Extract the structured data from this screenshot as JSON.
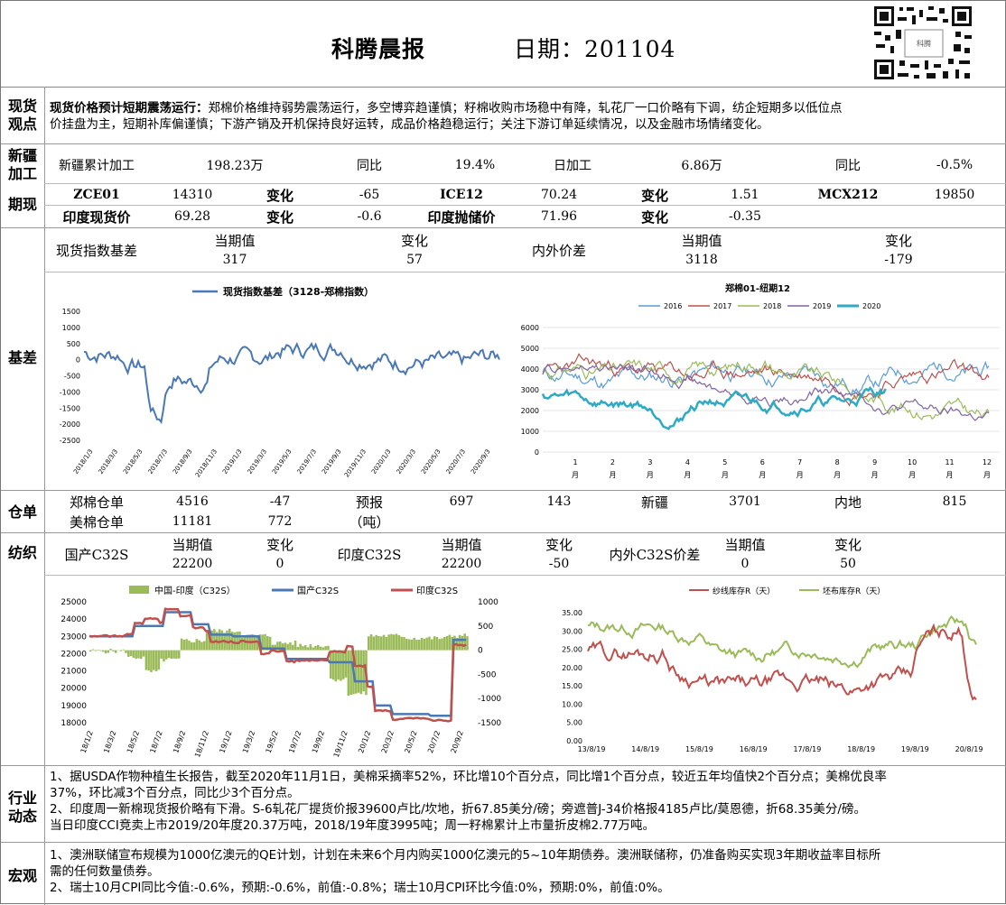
{
  "header": {
    "title": "科腾晨报",
    "date_label": "日期：",
    "date": "201104"
  },
  "sections": {
    "spot": "现货\n观点",
    "xinjiang": "新疆\n加工",
    "futures": "期现",
    "basis": "基差",
    "warehouse": "仓单",
    "textile": "纺织",
    "industry": "行业\n动态",
    "macro": "宏观"
  },
  "spot": {
    "head": "现货价格预计短期震荡运行：",
    "line1": "郑棉价格维持弱势震荡运行，多空博弈趋谨慎；籽棉收购市场稳中有降，轧花厂一口价略有下调，纺企短期多以低位点",
    "line2": "价挂盘为主，短期补库偏谨慎；下游产销及开机保持良好运转，成品价格趋稳运行；关注下游订单延续情况，以及金融市场情绪变化。"
  },
  "xinjiang": {
    "c1": "新疆累计加工",
    "c2": "198.23万",
    "c3": "同比",
    "c4": "19.4%",
    "c5": "日加工",
    "c6": "6.86万",
    "c7": "同比",
    "c8": "-0.5%"
  },
  "futures": {
    "r1": [
      "ZCE01",
      "14310",
      "变化",
      "-65",
      "ICE12",
      "70.24",
      "变化",
      "1.51",
      "MCX212",
      "19850"
    ],
    "r2": [
      "印度现货价",
      "69.28",
      "变化",
      "-0.6",
      "印度抛储价",
      "71.96",
      "变化",
      "-0.35"
    ]
  },
  "basis_table": {
    "label": "现货指数基差",
    "h1": "当期值",
    "h2": "变化",
    "v1": "317",
    "v2": "57",
    "label2": "内外价差",
    "h3": "当期值",
    "h4": "变化",
    "v3": "3118",
    "v4": "-179"
  },
  "chart_basis": {
    "type": "line",
    "title": "现货指数基差（3128-郑棉指数）",
    "yticks": [
      "1500",
      "1000",
      "500",
      "0",
      "-500",
      "-1000",
      "-1500",
      "-2000",
      "-2500"
    ],
    "xticks": [
      "2018/1/3",
      "2018/3/3",
      "2018/5/3",
      "2018/7/3",
      "2018/9/3",
      "2018/11/3",
      "2019/1/3",
      "2019/3/3",
      "2019/5/3",
      "2019/7/3",
      "2019/9/3",
      "2019/11/3",
      "2020/1/3",
      "2020/3/3",
      "2020/5/3",
      "2020/7/3",
      "2020/9/3"
    ],
    "color": "#4a78b5"
  },
  "chart_zz": {
    "type": "line",
    "title": "郑棉01-纽期12",
    "series": [
      "2016",
      "2017",
      "2018",
      "2019",
      "2020"
    ],
    "colors": [
      "#5b9bd5",
      "#c0504d",
      "#9bbb59",
      "#8064a2",
      "#2eaac4"
    ],
    "yticks": [
      "6000",
      "5000",
      "4000",
      "3000",
      "2000",
      "1000",
      "0"
    ],
    "xticks": [
      "1\n月",
      "2\n月",
      "3\n月",
      "4\n月",
      "5\n月",
      "6\n月",
      "7\n月",
      "8\n月",
      "9\n月",
      "10\n月",
      "11\n月",
      "12\n月"
    ]
  },
  "warehouse": {
    "r1": [
      "郑棉仓单",
      "4516",
      "-47",
      "预报",
      "697",
      "143",
      "新疆",
      "3701",
      "内地",
      "815"
    ],
    "r2": [
      "美棉仓单",
      "11181",
      "772",
      "（吨）"
    ]
  },
  "textile": {
    "l1": "国产C32S",
    "h1": "当期值",
    "h2": "变化",
    "v1": "22200",
    "v2": "0",
    "l2": "印度C32S",
    "h3": "当期值",
    "h4": "变化",
    "v3": "22200",
    "v4": "-50",
    "l3": "内外C32S价差",
    "h5": "当期值",
    "h6": "变化",
    "v5": "0",
    "v6": "50"
  },
  "chart_c32": {
    "type": "line",
    "legend": [
      "中国-印度（C32S）",
      "国产C32S",
      "印度C32S"
    ],
    "colors": [
      "#9bbb59",
      "#4a78b5",
      "#c0504d"
    ],
    "yticks_left": [
      "25000",
      "24000",
      "23000",
      "22000",
      "21000",
      "20000",
      "19000",
      "18000"
    ],
    "yticks_right": [
      "1000",
      "500",
      "0",
      "-500",
      "-1000",
      "-1500"
    ],
    "xticks": [
      "18/1/2",
      "18/3/2",
      "18/5/2",
      "18/7/2",
      "18/9/2",
      "18/11/2",
      "19/1/2",
      "19/3/2",
      "19/5/2",
      "19/7/2",
      "19/9/2",
      "19/11/2",
      "20/1/2",
      "20/3/2",
      "20/5/2",
      "20/7/2",
      "20/9/2"
    ]
  },
  "chart_inv": {
    "type": "line",
    "legend": [
      "纱线库存R（天）",
      "坯布库存R（天）"
    ],
    "colors": [
      "#c0504d",
      "#9bbb59"
    ],
    "yticks": [
      "35.00",
      "30.00",
      "25.00",
      "20.00",
      "15.00",
      "10.00",
      "5.00",
      "0.00"
    ],
    "xticks": [
      "13/8/19",
      "14/8/19",
      "15/8/19",
      "16/8/19",
      "17/8/19",
      "18/8/19",
      "19/8/19",
      "20/8/19"
    ]
  },
  "industry": {
    "l1": "1、据USDA作物种植生长报告，截至2020年11月1日，美棉采摘率52%，环比增10个百分点，同比增1个百分点，较近五年均值快2个百分点；美棉优良率",
    "l2": "37%，环比减3个百分点，同比少3个百分点。",
    "l3": "2、印度周一新棉现货报价略有下滑。S-6轧花厂提货价报39600卢比/坎地，折67.85美分/磅；旁遮普J-34价格报4185卢比/莫恩德，折68.35美分/磅。",
    "l4": "当日印度CCI竞卖上市2019/20年度20.37万吨，2018/19年度3995吨；周一籽棉累计上市量折皮棉2.77万吨。"
  },
  "macro": {
    "l1": "1、澳洲联储宣布规模为1000亿澳元的QE计划，计划在未来6个月内购买1000亿澳元的5~10年期债券。澳洲联储称，仍准备购买实现3年期收益率目标所",
    "l2": "需的任何数量债券。",
    "l3": "2、瑞士10月CPI同比今值:-0.6%，预期:-0.6%，前值:-0.8%；瑞士10月CPI环比今值:0%，预期:0%，前值:0%。"
  }
}
